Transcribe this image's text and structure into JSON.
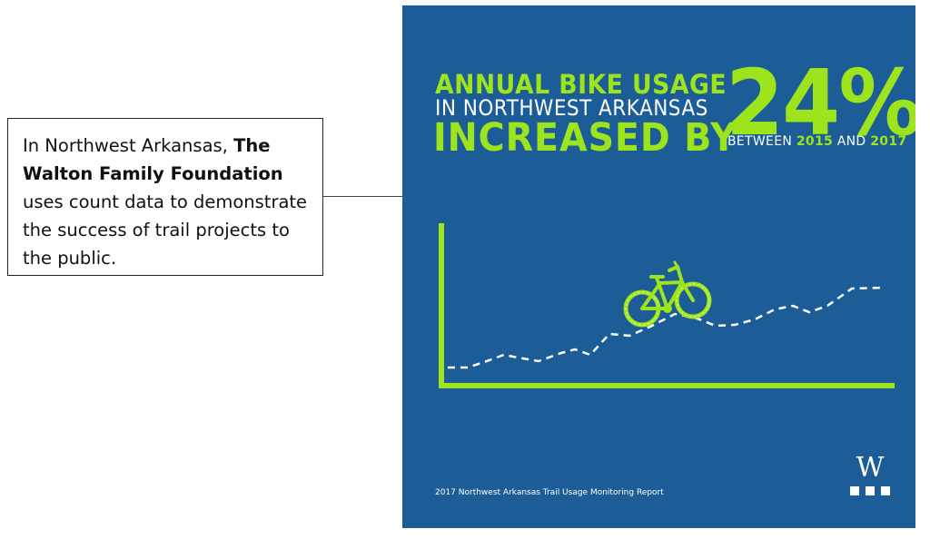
{
  "callout": {
    "text_before": "In Northwest Arkansas, ",
    "text_bold": "The Walton Family Foundation",
    "text_after": " uses count data to demonstrate the success of trail projects to the public."
  },
  "poster": {
    "background_color": "#1c5d97",
    "accent_color": "#9ee41c",
    "headline_line1": "ANNUAL BIKE USAGE",
    "headline_line2": "IN NORTHWEST ARKANSAS",
    "headline_line3": "INCREASED BY",
    "big_number": "24%",
    "between_prefix": "BETWEEN ",
    "year_start": "2015",
    "between_and": " AND ",
    "year_end": "2017",
    "report_label": "2017 Northwest Arkansas Trail Usage Monitoring Report",
    "logo_letter": "W",
    "icons": [
      "bicycle-icon",
      "walton-logo-icon"
    ]
  }
}
